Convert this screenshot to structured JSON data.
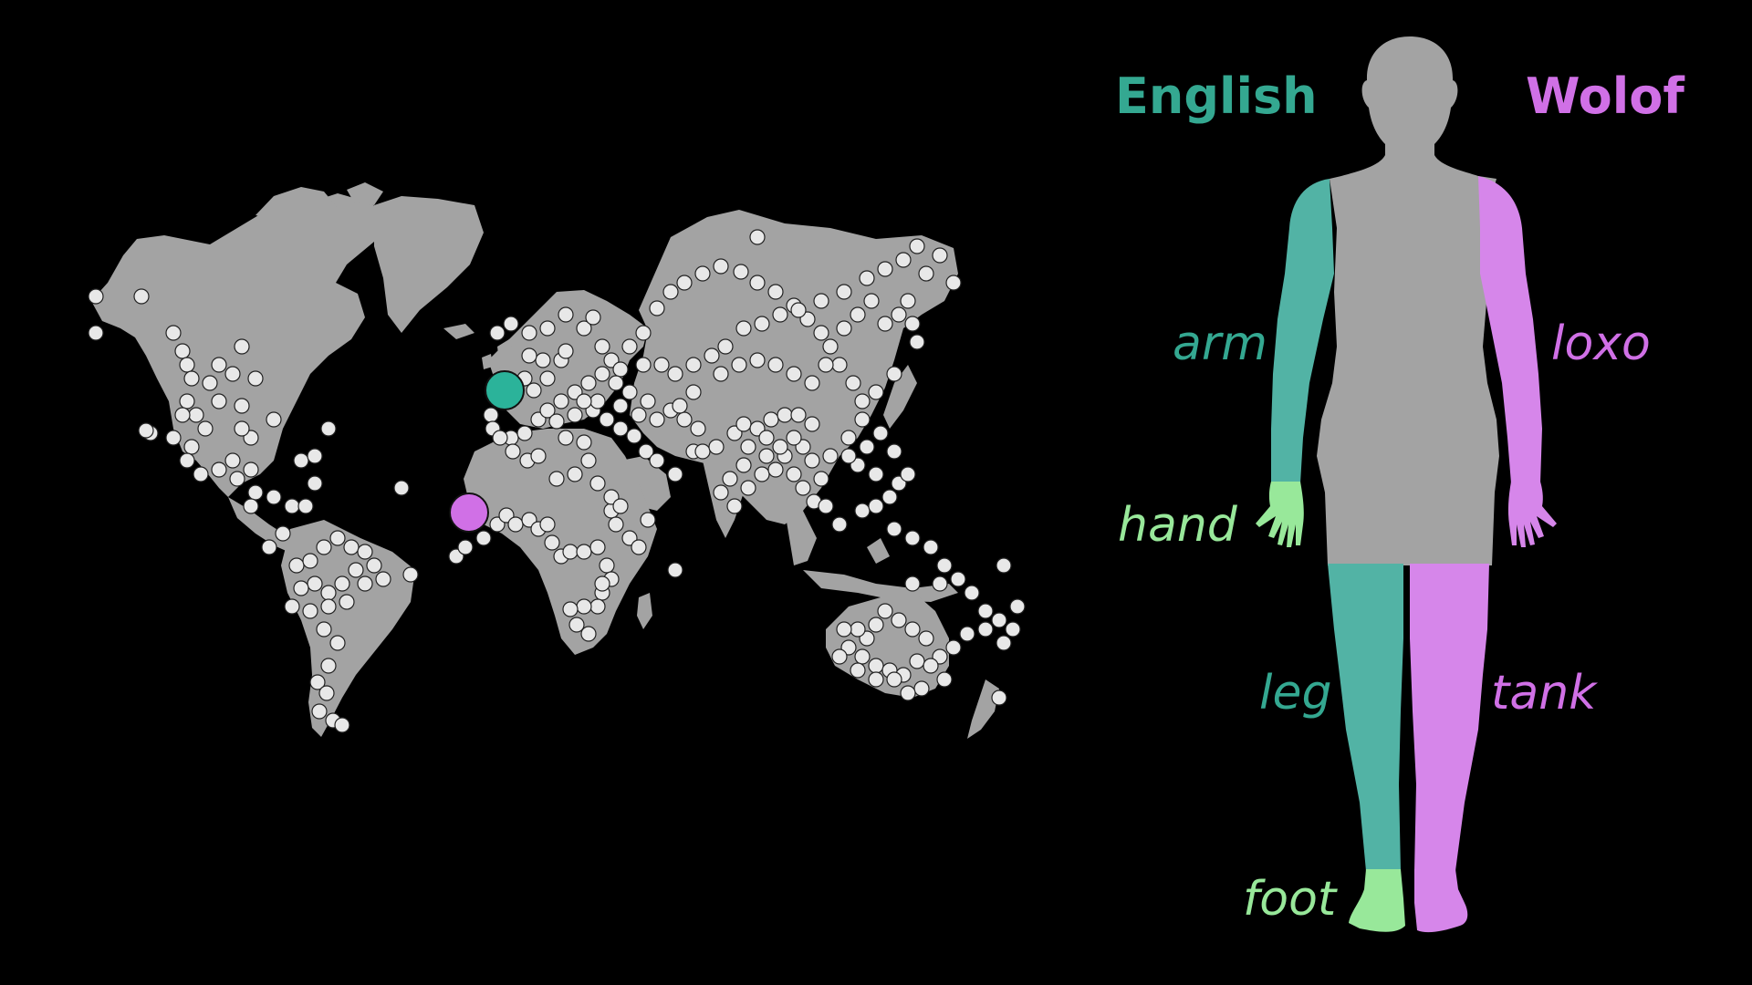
{
  "colors": {
    "background": "#000000",
    "land": "#a3a3a3",
    "language_dot": "#e8e8e8",
    "english": "#2bb39a",
    "english_text": "#34a891",
    "english_limb": "#52b3a5",
    "wolof": "#d070e6",
    "wolof_limb": "#d686ea",
    "shared_extremity": "#98e89a",
    "body": "#a3a3a3"
  },
  "languages": {
    "english": {
      "label": "English"
    },
    "wolof": {
      "label": "Wolof"
    }
  },
  "words": {
    "english": {
      "arm": "arm",
      "hand": "hand",
      "leg": "leg",
      "foot": "foot"
    },
    "wolof": {
      "arm_hand": "loxo",
      "leg_foot": "tank"
    }
  },
  "icons": {
    "map": "world-map-icon",
    "figure": "human-figure-icon"
  }
}
